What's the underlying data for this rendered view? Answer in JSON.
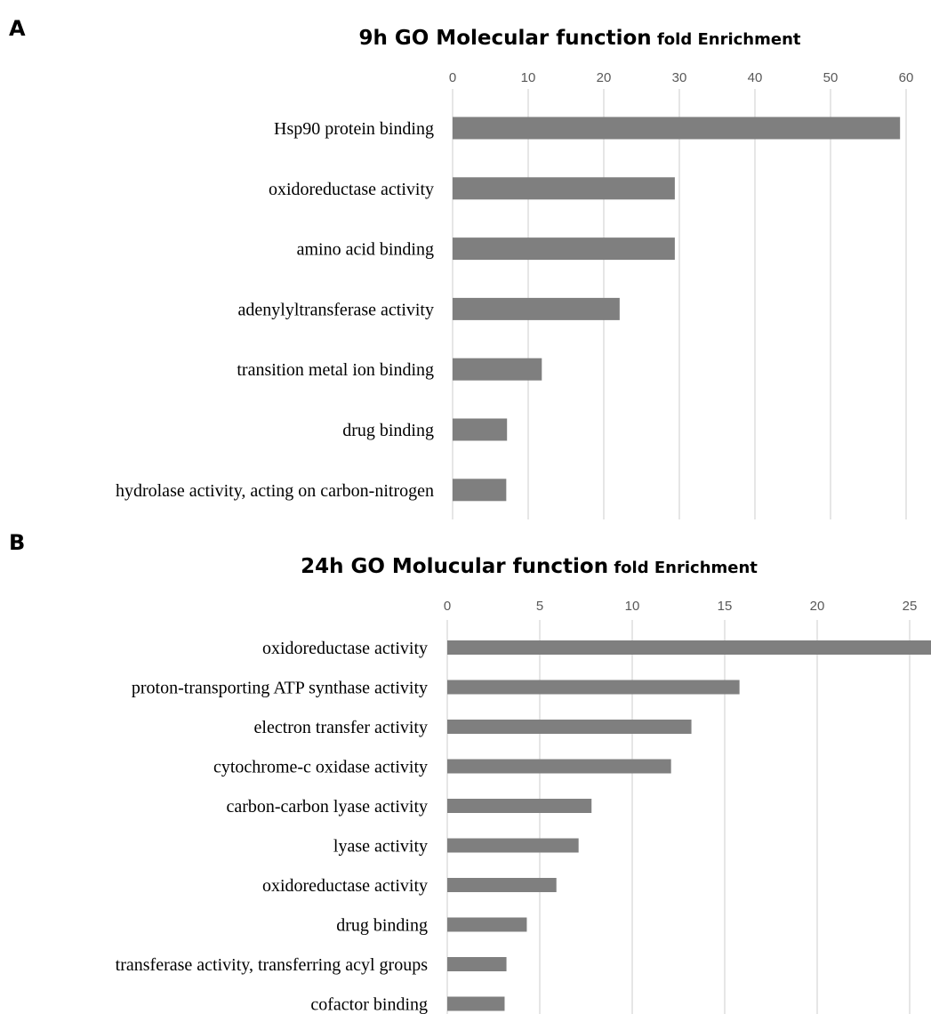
{
  "panels": [
    {
      "letter": "A",
      "title_main": "9h GO Molecular function",
      "title_sub": " fold Enrichment"
    },
    {
      "letter": "B",
      "title_main": "24h GO Molucular function",
      "title_sub": " fold Enrichment"
    }
  ],
  "chart_data": [
    {
      "type": "bar",
      "orientation": "horizontal",
      "title": "9h GO Molecular function fold Enrichment",
      "xlim": [
        0,
        60
      ],
      "xticks": [
        0,
        10,
        20,
        30,
        40,
        50,
        60
      ],
      "grid": true,
      "categories": [
        "Hsp90 protein binding",
        "oxidoreductase activity",
        "amino acid binding",
        "adenylyltransferase activity",
        "transition metal ion binding",
        "drug binding",
        "hydrolase activity, acting on carbon-nitrogen"
      ],
      "values": [
        59.2,
        29.4,
        29.4,
        22.1,
        11.8,
        7.2,
        7.1
      ],
      "bar_color": "#7f7f7f"
    },
    {
      "type": "bar",
      "orientation": "horizontal",
      "title": "24h GO Molucular function fold Enrichment",
      "xlim": [
        0,
        25
      ],
      "xticks": [
        0,
        5,
        10,
        15,
        20,
        25
      ],
      "grid": true,
      "categories": [
        "oxidoreductase activity",
        "proton-transporting ATP synthase activity",
        "electron transfer activity",
        "cytochrome-c oxidase activity",
        "carbon-carbon lyase activity",
        "lyase activity",
        "oxidoreductase activity",
        "drug binding",
        "transferase activity, transferring acyl groups",
        "cofactor binding"
      ],
      "values": [
        26.5,
        15.8,
        13.2,
        12.1,
        7.8,
        7.1,
        5.9,
        4.3,
        3.2,
        3.1
      ],
      "bar_color": "#7f7f7f"
    }
  ]
}
